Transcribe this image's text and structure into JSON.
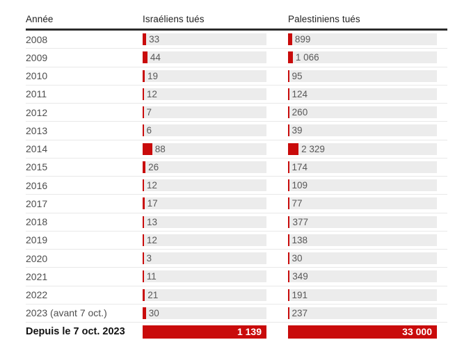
{
  "chart_data": {
    "type": "bar",
    "orientation": "horizontal",
    "title": "",
    "categories": [
      "2008",
      "2009",
      "2010",
      "2011",
      "2012",
      "2013",
      "2014",
      "2015",
      "2016",
      "2017",
      "2018",
      "2019",
      "2020",
      "2021",
      "2022",
      "2023 (avant 7 oct.)",
      "Depuis le 7 oct. 2023"
    ],
    "series": [
      {
        "name": "Israéliens tués",
        "values": [
          33,
          44,
          19,
          12,
          7,
          6,
          88,
          26,
          12,
          17,
          13,
          12,
          3,
          11,
          21,
          30,
          1139
        ],
        "axis_max": 1139
      },
      {
        "name": "Palestiniens tués",
        "values": [
          899,
          1066,
          95,
          124,
          260,
          39,
          2329,
          174,
          109,
          77,
          377,
          138,
          30,
          349,
          191,
          237,
          33000
        ],
        "axis_max": 33000
      }
    ],
    "grid": false,
    "legend_position": "column-headers",
    "bar_color": "#c90b0b",
    "bar_background": "#ececec"
  },
  "table": {
    "headers": {
      "year": "Année",
      "israelis": "Israéliens tués",
      "palestinians": "Palestiniens tués"
    },
    "max": {
      "israelis": 1139,
      "palestinians": 33000
    },
    "rows": [
      {
        "year": "2008",
        "israelis": 33,
        "israelis_label": "33",
        "palestinians": 899,
        "palestinians_label": "899"
      },
      {
        "year": "2009",
        "israelis": 44,
        "israelis_label": "44",
        "palestinians": 1066,
        "palestinians_label": "1 066"
      },
      {
        "year": "2010",
        "israelis": 19,
        "israelis_label": "19",
        "palestinians": 95,
        "palestinians_label": "95"
      },
      {
        "year": "2011",
        "israelis": 12,
        "israelis_label": "12",
        "palestinians": 124,
        "palestinians_label": "124"
      },
      {
        "year": "2012",
        "israelis": 7,
        "israelis_label": "7",
        "palestinians": 260,
        "palestinians_label": "260"
      },
      {
        "year": "2013",
        "israelis": 6,
        "israelis_label": "6",
        "palestinians": 39,
        "palestinians_label": "39"
      },
      {
        "year": "2014",
        "israelis": 88,
        "israelis_label": "88",
        "palestinians": 2329,
        "palestinians_label": "2 329"
      },
      {
        "year": "2015",
        "israelis": 26,
        "israelis_label": "26",
        "palestinians": 174,
        "palestinians_label": "174"
      },
      {
        "year": "2016",
        "israelis": 12,
        "israelis_label": "12",
        "palestinians": 109,
        "palestinians_label": "109"
      },
      {
        "year": "2017",
        "israelis": 17,
        "israelis_label": "17",
        "palestinians": 77,
        "palestinians_label": "77"
      },
      {
        "year": "2018",
        "israelis": 13,
        "israelis_label": "13",
        "palestinians": 377,
        "palestinians_label": "377"
      },
      {
        "year": "2019",
        "israelis": 12,
        "israelis_label": "12",
        "palestinians": 138,
        "palestinians_label": "138"
      },
      {
        "year": "2020",
        "israelis": 3,
        "israelis_label": "3",
        "palestinians": 30,
        "palestinians_label": "30"
      },
      {
        "year": "2021",
        "israelis": 11,
        "israelis_label": "11",
        "palestinians": 349,
        "palestinians_label": "349"
      },
      {
        "year": "2022",
        "israelis": 21,
        "israelis_label": "21",
        "palestinians": 191,
        "palestinians_label": "191"
      },
      {
        "year": "2023 (avant 7 oct.)",
        "israelis": 30,
        "israelis_label": "30",
        "palestinians": 237,
        "palestinians_label": "237"
      }
    ],
    "total_row": {
      "year": "Depuis le 7 oct. 2023",
      "israelis": 1139,
      "israelis_label": "1 139",
      "palestinians": 33000,
      "palestinians_label": "33 000"
    },
    "colors": {
      "bar_red": "#c90b0b",
      "bar_background": "#ececec",
      "header_rule": "#2b2b2b",
      "row_separator": "#e8e8e8",
      "header_text": "#1f1f1f",
      "year_text": "#4d4d4d",
      "value_text": "#585858",
      "total_value_text": "#ffffff"
    }
  }
}
